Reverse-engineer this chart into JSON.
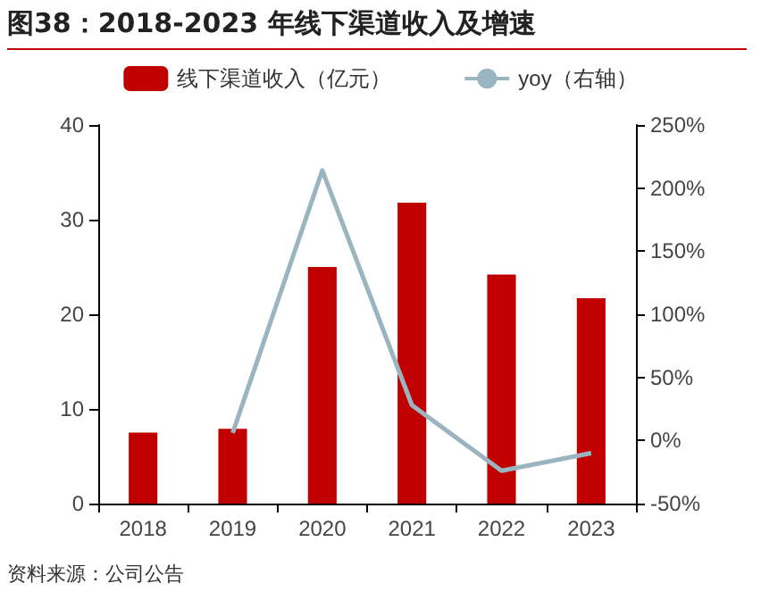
{
  "chart_data": {
    "type": "bar",
    "title": "图38：2018-2023 年线下渠道收入及增速",
    "categories": [
      "2018",
      "2019",
      "2020",
      "2021",
      "2022",
      "2023"
    ],
    "series": [
      {
        "name": "线下渠道收入（亿元）",
        "color": "#c00000",
        "values": [
          7.5,
          7.9,
          25.0,
          31.8,
          24.2,
          21.7
        ]
      },
      {
        "name": "yoy（右轴）",
        "type": "line",
        "axis": "y2",
        "color": "#9bb5c0",
        "marker": "none",
        "values": [
          null,
          6,
          214,
          28,
          -24,
          -10
        ]
      }
    ],
    "ylim": [
      0,
      40
    ],
    "yticks": [
      0,
      10,
      20,
      30,
      40
    ],
    "y2lim": [
      -50,
      250
    ],
    "y2ticks": [
      {
        "value": -50,
        "label": "-50%"
      },
      {
        "value": 0,
        "label": "0%"
      },
      {
        "value": 50,
        "label": "50%"
      },
      {
        "value": 100,
        "label": "100%"
      },
      {
        "value": 150,
        "label": "150%"
      },
      {
        "value": 200,
        "label": "200%"
      },
      {
        "value": 250,
        "label": "250%"
      }
    ],
    "grid": false,
    "legend": "top",
    "annotations": [
      "资料来源：公司公告"
    ]
  }
}
